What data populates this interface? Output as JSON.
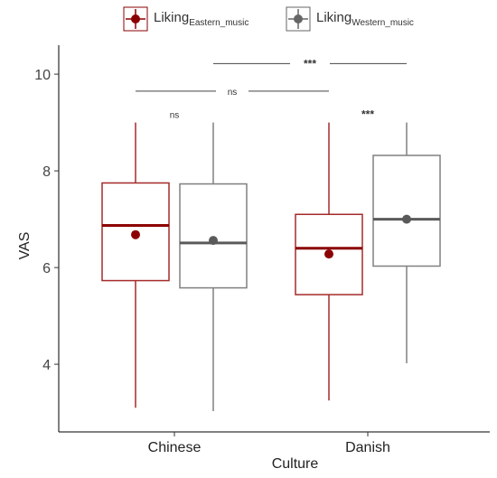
{
  "legend": {
    "items": [
      {
        "base": "Liking",
        "sub": "Eastern_music",
        "color": "#8B0000"
      },
      {
        "base": "Liking",
        "sub": "Western_music",
        "color": "#666666"
      }
    ]
  },
  "chart_data": {
    "type": "boxplot",
    "xlabel": "Culture",
    "ylabel": "VAS",
    "ylim": [
      2.6,
      10.6
    ],
    "yticks": [
      4,
      6,
      8,
      10
    ],
    "grid": false,
    "legend_position": "top",
    "categories": [
      "Chinese",
      "Danish"
    ],
    "series": [
      {
        "name": "Liking Eastern_music",
        "color": "#A52A2A",
        "mean_color": "#8B0000",
        "boxes": [
          {
            "category": "Chinese",
            "whisker_low": 3.1,
            "q1": 5.73,
            "median": 6.87,
            "q3": 7.75,
            "whisker_high": 9.0,
            "mean": 6.68,
            "mean_err": 0.07
          },
          {
            "category": "Danish",
            "whisker_low": 3.25,
            "q1": 5.44,
            "median": 6.4,
            "q3": 7.1,
            "whisker_high": 9.0,
            "mean": 6.28,
            "mean_err": 0.07
          }
        ]
      },
      {
        "name": "Liking Western_music",
        "color": "#808080",
        "mean_color": "#5a5a5a",
        "boxes": [
          {
            "category": "Chinese",
            "whisker_low": 3.03,
            "q1": 5.58,
            "median": 6.51,
            "q3": 7.73,
            "whisker_high": 9.0,
            "mean": 6.56,
            "mean_err": 0.07
          },
          {
            "category": "Danish",
            "whisker_low": 4.02,
            "q1": 6.03,
            "median": 7.0,
            "q3": 8.32,
            "whisker_high": 9.0,
            "mean": 7.0,
            "mean_err": 0.07
          }
        ]
      }
    ],
    "significance": {
      "between_culture": [
        {
          "comparison": "Liking Eastern_music: Chinese vs Danish",
          "label": "ns",
          "y": 9.65
        },
        {
          "comparison": "Liking Western_music: Chinese vs Danish",
          "label": "***",
          "y": 10.22
        }
      ],
      "within_culture": [
        {
          "category": "Chinese",
          "label": "ns",
          "y": 9.1
        },
        {
          "category": "Danish",
          "label": "***",
          "y": 9.1
        }
      ]
    }
  }
}
